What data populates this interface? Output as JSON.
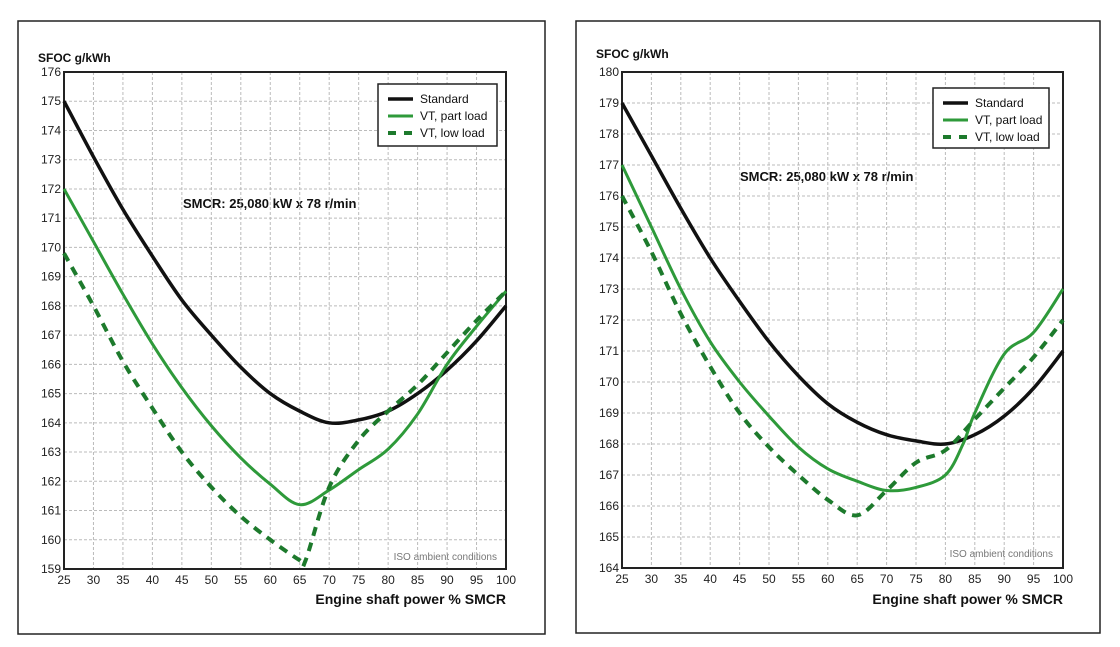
{
  "colors": {
    "standard": "#111111",
    "part_load": "#2e9a3a",
    "low_load": "#1d7a2c",
    "grid": "#bbbbbb"
  },
  "chart_data": [
    {
      "type": "line",
      "ylabel": "SFOC g/kWh",
      "xlabel": "Engine shaft power % SMCR",
      "annotation": "SMCR: 25,080 kW x 78 r/min",
      "note": "ISO ambient conditions",
      "xlim": [
        25,
        100
      ],
      "ylim": [
        159,
        176
      ],
      "xticks": [
        25,
        30,
        35,
        40,
        45,
        50,
        55,
        60,
        65,
        70,
        75,
        80,
        85,
        90,
        95,
        100
      ],
      "yticks": [
        159,
        160,
        161,
        162,
        163,
        164,
        165,
        166,
        167,
        168,
        169,
        170,
        171,
        172,
        173,
        174,
        175,
        176
      ],
      "grid": true,
      "legend": "top-right",
      "series": [
        {
          "name": "Standard",
          "style": "solid-black",
          "x": [
            25,
            30,
            35,
            40,
            45,
            50,
            55,
            60,
            65,
            70,
            75,
            80,
            85,
            90,
            95,
            100
          ],
          "y": [
            175,
            173.1,
            171.3,
            169.7,
            168.2,
            167,
            165.9,
            165,
            164.4,
            164,
            164.1,
            164.4,
            165,
            165.8,
            166.8,
            168
          ]
        },
        {
          "name": "VT, part load",
          "style": "solid-green",
          "x": [
            25,
            30,
            35,
            40,
            45,
            50,
            55,
            60,
            65,
            70,
            75,
            80,
            85,
            90,
            95,
            100
          ],
          "y": [
            172,
            170.2,
            168.4,
            166.7,
            165.2,
            163.9,
            162.8,
            161.9,
            161.2,
            161.7,
            162.4,
            163.1,
            164.3,
            166,
            167.3,
            168.5
          ]
        },
        {
          "name": "VT, low load",
          "style": "dashed-green",
          "x": [
            25,
            30,
            35,
            40,
            45,
            50,
            55,
            60,
            65,
            66,
            70,
            75,
            80,
            85,
            90,
            95,
            100
          ],
          "y": [
            169.8,
            168,
            166.1,
            164.5,
            163,
            161.8,
            160.8,
            160,
            159.3,
            159.3,
            161.8,
            163.4,
            164.4,
            165.3,
            166.4,
            167.5,
            168.5
          ]
        }
      ]
    },
    {
      "type": "line",
      "ylabel": "SFOC g/kWh",
      "xlabel": "Engine shaft power % SMCR",
      "annotation": "SMCR: 25,080 kW x 78 r/min",
      "note": "ISO ambient conditions",
      "xlim": [
        25,
        100
      ],
      "ylim": [
        164,
        180
      ],
      "xticks": [
        25,
        30,
        35,
        40,
        45,
        50,
        55,
        60,
        65,
        70,
        75,
        80,
        85,
        90,
        95,
        100
      ],
      "yticks": [
        164,
        165,
        166,
        167,
        168,
        169,
        170,
        171,
        172,
        173,
        174,
        175,
        176,
        177,
        178,
        179,
        180
      ],
      "grid": true,
      "legend": "top-right",
      "series": [
        {
          "name": "Standard",
          "style": "solid-black",
          "x": [
            25,
            30,
            35,
            40,
            45,
            50,
            55,
            60,
            65,
            70,
            75,
            80,
            85,
            90,
            95,
            100
          ],
          "y": [
            179,
            177.3,
            175.6,
            174,
            172.6,
            171.3,
            170.2,
            169.3,
            168.7,
            168.3,
            168.1,
            168,
            168.3,
            168.9,
            169.8,
            171
          ]
        },
        {
          "name": "VT, part load",
          "style": "solid-green",
          "x": [
            25,
            30,
            35,
            40,
            45,
            50,
            55,
            60,
            65,
            70,
            75,
            80,
            83,
            85,
            90,
            95,
            100
          ],
          "y": [
            177,
            175,
            173,
            171.3,
            170,
            168.9,
            167.9,
            167.2,
            166.8,
            166.5,
            166.6,
            167,
            168,
            169,
            170.9,
            171.6,
            173
          ]
        },
        {
          "name": "VT, low load",
          "style": "dashed-green",
          "x": [
            25,
            30,
            35,
            40,
            45,
            50,
            55,
            60,
            65,
            70,
            75,
            80,
            85,
            90,
            95,
            100
          ],
          "y": [
            176,
            174.2,
            172.2,
            170.5,
            169,
            167.9,
            167,
            166.2,
            165.7,
            166.5,
            167.4,
            167.8,
            168.8,
            169.8,
            170.8,
            172
          ]
        }
      ]
    }
  ]
}
